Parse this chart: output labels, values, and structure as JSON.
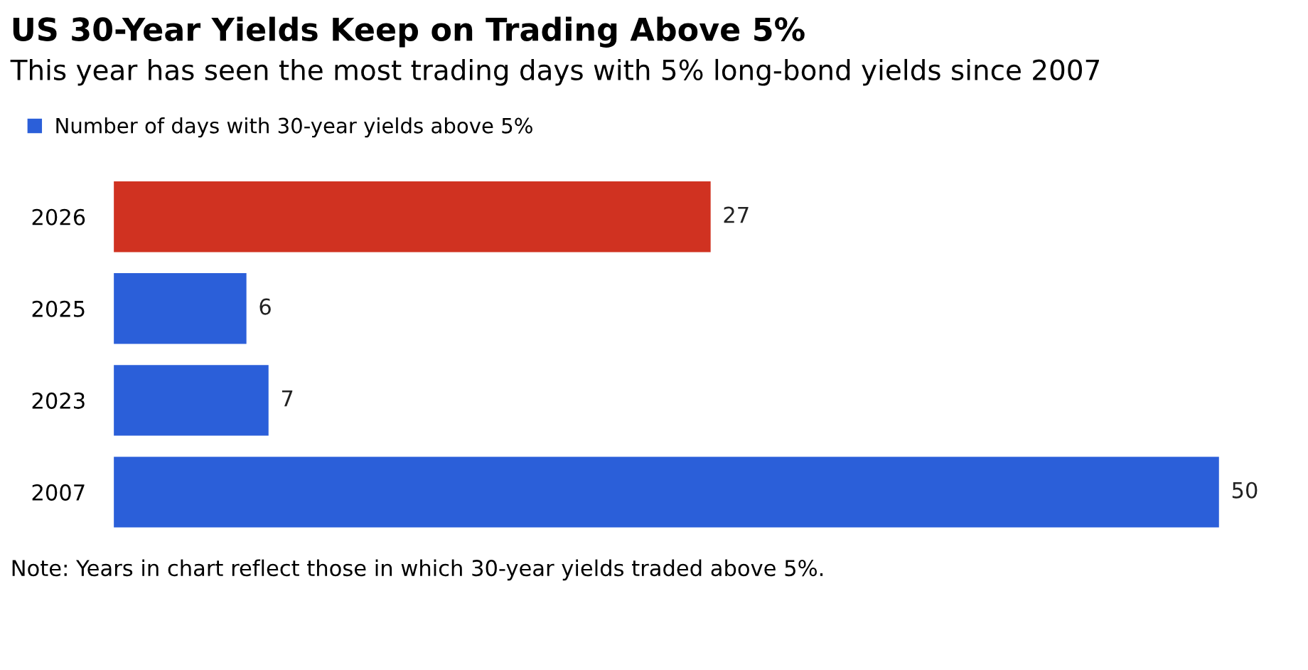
{
  "chart_data": {
    "type": "bar",
    "orientation": "horizontal",
    "title": "US 30-Year Yields Keep on Trading Above 5%",
    "subtitle": "This year has seen the most trading days with 5% long-bond yields since 2007",
    "categories": [
      "2026",
      "2025",
      "2023",
      "2007"
    ],
    "series": [
      {
        "name": "Number of days with 30-year yields above 5%",
        "color": "#2b5fd9",
        "colors": [
          "#d03221",
          "#2b5fd9",
          "#2b5fd9",
          "#2b5fd9"
        ],
        "values": [
          27,
          6,
          7,
          50
        ]
      }
    ],
    "data_labels": true,
    "legend": "top left",
    "grid": false,
    "annotations": [
      "Note: Years in chart reflect those in which 30-year yields traded above 5%."
    ]
  }
}
